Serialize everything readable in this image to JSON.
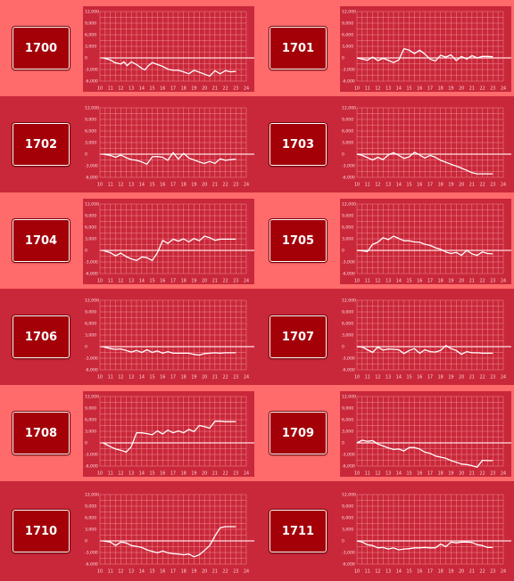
{
  "y_ticks": [
    "12,000",
    "9,000",
    "6,000",
    "3,000",
    "0",
    "-3,000",
    "-6,000"
  ],
  "x_ticks": [
    "10",
    "11",
    "12",
    "13",
    "14",
    "15",
    "16",
    "17",
    "18",
    "19",
    "20",
    "21",
    "22",
    "23",
    "24"
  ],
  "machines": [
    {
      "label": "1700"
    },
    {
      "label": "1701"
    },
    {
      "label": "1702"
    },
    {
      "label": "1703"
    },
    {
      "label": "1704"
    },
    {
      "label": "1705"
    },
    {
      "label": "1706"
    },
    {
      "label": "1707"
    },
    {
      "label": "1708"
    },
    {
      "label": "1709"
    },
    {
      "label": "1710"
    },
    {
      "label": "1711"
    }
  ],
  "chart_data": [
    {
      "type": "line",
      "title": "1700",
      "ylim": [
        -6000,
        12000
      ],
      "xlim": [
        10,
        24
      ],
      "grid": true,
      "series": [
        {
          "x": [
            10.3,
            11,
            11.4,
            12,
            12.3,
            12.6,
            13,
            13.5,
            14,
            14.3,
            14.6,
            15,
            15.5,
            16,
            16.5,
            17,
            17.5,
            18,
            18.5,
            19,
            19.5,
            20,
            20.5,
            21,
            21.5,
            22,
            22.5,
            23
          ],
          "y": [
            0,
            -500,
            -1200,
            -1600,
            -1000,
            -2000,
            -1000,
            -1700,
            -2700,
            -3100,
            -2100,
            -1200,
            -1700,
            -2200,
            -2900,
            -3200,
            -3200,
            -3600,
            -4100,
            -3200,
            -3700,
            -4200,
            -4700,
            -3300,
            -4100,
            -3300,
            -3600,
            -3500
          ]
        }
      ]
    },
    {
      "type": "line",
      "title": "1701",
      "ylim": [
        -6000,
        12000
      ],
      "xlim": [
        10,
        24
      ],
      "grid": true,
      "series": [
        {
          "x": [
            10,
            10.5,
            11,
            11.5,
            12,
            12.5,
            13,
            13.5,
            14,
            14.5,
            15,
            15.5,
            16,
            16.5,
            17,
            17.5,
            18,
            18.5,
            19,
            19.5,
            20,
            20.5,
            21,
            21.5,
            22,
            22.5,
            23
          ],
          "y": [
            0,
            -300,
            -600,
            200,
            -700,
            -100,
            -600,
            -1200,
            -500,
            2400,
            2000,
            1100,
            2000,
            1000,
            -300,
            -800,
            700,
            200,
            800,
            -700,
            400,
            -300,
            600,
            0,
            400,
            400,
            300
          ]
        }
      ]
    },
    {
      "type": "line",
      "title": "1702",
      "ylim": [
        -6000,
        12000
      ],
      "xlim": [
        10,
        24
      ],
      "grid": true,
      "series": [
        {
          "x": [
            10.3,
            11,
            11.5,
            12,
            12.5,
            13,
            13.5,
            14,
            14.5,
            15,
            15.5,
            16,
            16.5,
            17,
            17.5,
            18,
            18.5,
            19,
            19.5,
            20,
            20.5,
            21,
            21.5,
            22,
            22.5,
            23
          ],
          "y": [
            0,
            -300,
            -800,
            -200,
            -900,
            -1400,
            -1600,
            -2000,
            -2600,
            -700,
            -600,
            -800,
            -1600,
            400,
            -1300,
            200,
            -1000,
            -1500,
            -2000,
            -2400,
            -1900,
            -2400,
            -1200,
            -1600,
            -1400,
            -1300
          ]
        }
      ]
    },
    {
      "type": "line",
      "title": "1703",
      "ylim": [
        -6000,
        12000
      ],
      "xlim": [
        10,
        24
      ],
      "grid": true,
      "series": [
        {
          "x": [
            10,
            10.5,
            11,
            11.5,
            12,
            12.5,
            13,
            13.5,
            14,
            14.5,
            15,
            15.5,
            16,
            16.5,
            17,
            17.5,
            18,
            18.5,
            19,
            19.5,
            20,
            20.5,
            21,
            21.5,
            22,
            22.5,
            23
          ],
          "y": [
            0,
            -300,
            -900,
            -1500,
            -800,
            -1400,
            -200,
            400,
            -300,
            -1100,
            -700,
            500,
            -200,
            -1000,
            -300,
            -800,
            -1600,
            -2100,
            -2600,
            -3100,
            -3600,
            -4200,
            -4800,
            -5100,
            -5100,
            -5100,
            -5100
          ]
        }
      ]
    },
    {
      "type": "line",
      "title": "1704",
      "ylim": [
        -6000,
        12000
      ],
      "xlim": [
        10,
        24
      ],
      "grid": true,
      "series": [
        {
          "x": [
            10.3,
            11,
            11.5,
            12,
            12.5,
            13,
            13.5,
            14,
            14.5,
            15,
            15.5,
            16,
            16.5,
            17,
            17.5,
            18,
            18.5,
            19,
            19.5,
            20,
            20.5,
            21,
            21.5,
            22,
            22.5,
            23
          ],
          "y": [
            0,
            -600,
            -1400,
            -700,
            -1600,
            -2200,
            -2600,
            -1700,
            -1900,
            -2600,
            -600,
            2600,
            1800,
            2900,
            2400,
            3000,
            2200,
            3100,
            2500,
            3700,
            3300,
            2600,
            2900,
            2900,
            2900,
            2900
          ]
        }
      ]
    },
    {
      "type": "line",
      "title": "1705",
      "ylim": [
        -6000,
        12000
      ],
      "xlim": [
        10,
        24
      ],
      "grid": true,
      "series": [
        {
          "x": [
            10,
            10.5,
            11,
            11.5,
            12,
            12.5,
            13,
            13.5,
            14,
            14.5,
            15,
            15.5,
            16,
            16.5,
            17,
            17.5,
            18,
            18.5,
            19,
            19.5,
            20,
            20.5,
            21,
            21.5,
            22,
            22.5,
            23
          ],
          "y": [
            0,
            -100,
            -300,
            1600,
            2100,
            3300,
            2800,
            3700,
            3100,
            2500,
            2500,
            2200,
            2100,
            1600,
            1300,
            700,
            300,
            -400,
            -800,
            -500,
            -1300,
            0,
            -900,
            -1300,
            -400,
            -800,
            -900
          ]
        }
      ]
    },
    {
      "type": "line",
      "title": "1706",
      "ylim": [
        -6000,
        12000
      ],
      "xlim": [
        10,
        24
      ],
      "grid": true,
      "series": [
        {
          "x": [
            10.3,
            11,
            11.5,
            12,
            12.5,
            13,
            13.5,
            14,
            14.5,
            15,
            15.5,
            16,
            16.5,
            17,
            17.5,
            18,
            18.5,
            19,
            19.5,
            20,
            20.5,
            21,
            21.5,
            22,
            22.5,
            23
          ],
          "y": [
            0,
            -500,
            -700,
            -600,
            -1000,
            -1400,
            -1000,
            -1500,
            -800,
            -1500,
            -1100,
            -1700,
            -1300,
            -1700,
            -1700,
            -1700,
            -1700,
            -2000,
            -2200,
            -1800,
            -1700,
            -1600,
            -1700,
            -1600,
            -1600,
            -1600
          ]
        }
      ]
    },
    {
      "type": "line",
      "title": "1707",
      "ylim": [
        -6000,
        12000
      ],
      "xlim": [
        10,
        24
      ],
      "grid": true,
      "series": [
        {
          "x": [
            10,
            10.5,
            11,
            11.5,
            12,
            12.5,
            13,
            13.5,
            14,
            14.5,
            15,
            15.5,
            16,
            16.5,
            17,
            17.5,
            18,
            18.5,
            19,
            19.5,
            20,
            20.5,
            21,
            21.5,
            22,
            22.5,
            23
          ],
          "y": [
            0,
            -100,
            -800,
            -1500,
            -100,
            -900,
            -600,
            -700,
            -800,
            -1800,
            -1000,
            -500,
            -1700,
            -800,
            -1300,
            -1400,
            -1000,
            300,
            -500,
            -1000,
            -2000,
            -1300,
            -1600,
            -1600,
            -1700,
            -1700,
            -1700
          ]
        }
      ]
    },
    {
      "type": "line",
      "title": "1708",
      "ylim": [
        -6000,
        12000
      ],
      "xlim": [
        10,
        24
      ],
      "grid": true,
      "series": [
        {
          "x": [
            10.3,
            11,
            11.5,
            12,
            12.5,
            13,
            13.5,
            14,
            14.5,
            15,
            15.5,
            16,
            16.5,
            17,
            17.5,
            18,
            18.5,
            19,
            19.5,
            20,
            20.5,
            21,
            21.5,
            22,
            22.5,
            23
          ],
          "y": [
            0,
            -1000,
            -1600,
            -1900,
            -2400,
            -1000,
            2600,
            2600,
            2400,
            2100,
            3100,
            2300,
            3300,
            2600,
            3100,
            2600,
            3500,
            2900,
            4500,
            4200,
            3800,
            5600,
            5600,
            5500,
            5500,
            5500
          ]
        }
      ]
    },
    {
      "type": "line",
      "title": "1709",
      "ylim": [
        -6000,
        12000
      ],
      "xlim": [
        10,
        24
      ],
      "grid": true,
      "series": [
        {
          "x": [
            10,
            10.5,
            11,
            11.5,
            12,
            12.5,
            13,
            13.5,
            14,
            14.5,
            15,
            15.5,
            16,
            16.5,
            17,
            17.5,
            18,
            18.5,
            19,
            19.5,
            20,
            20.5,
            21,
            21.5,
            22,
            22.5,
            23
          ],
          "y": [
            0,
            700,
            400,
            600,
            -300,
            -800,
            -1300,
            -1700,
            -1600,
            -2100,
            -1200,
            -1200,
            -1600,
            -2400,
            -2700,
            -3400,
            -3700,
            -4000,
            -4600,
            -5000,
            -5500,
            -5600,
            -5900,
            -6300,
            -4500,
            -4600,
            -4600
          ]
        }
      ]
    },
    {
      "type": "line",
      "title": "1710",
      "ylim": [
        -6000,
        12000
      ],
      "xlim": [
        10,
        24
      ],
      "grid": true,
      "series": [
        {
          "x": [
            10.3,
            11,
            11.5,
            12,
            12.5,
            13,
            13.5,
            14,
            14.5,
            15,
            15.5,
            16,
            16.5,
            17,
            17.5,
            18,
            18.5,
            19,
            19.5,
            20,
            20.5,
            21,
            21.5,
            22,
            22.5,
            23
          ],
          "y": [
            0,
            -300,
            -1200,
            -300,
            -500,
            -1200,
            -1400,
            -1700,
            -2300,
            -2700,
            -3100,
            -2600,
            -3100,
            -3300,
            -3400,
            -3600,
            -3400,
            -4100,
            -3600,
            -2500,
            -1200,
            1300,
            3400,
            3700,
            3700,
            3700
          ]
        }
      ]
    },
    {
      "type": "line",
      "title": "1711",
      "ylim": [
        -6000,
        12000
      ],
      "xlim": [
        10,
        24
      ],
      "grid": true,
      "series": [
        {
          "x": [
            10,
            10.5,
            11,
            11.5,
            12,
            12.5,
            13,
            13.5,
            14,
            14.5,
            15,
            15.5,
            16,
            16.5,
            17,
            17.5,
            18,
            18.5,
            19,
            19.5,
            20,
            20.5,
            21,
            21.5,
            22,
            22.5,
            23
          ],
          "y": [
            0,
            -300,
            -1000,
            -1200,
            -1800,
            -1700,
            -2100,
            -1800,
            -2300,
            -2100,
            -2000,
            -1800,
            -1800,
            -1700,
            -1800,
            -1800,
            -800,
            -1500,
            -300,
            -500,
            -300,
            -300,
            -400,
            -1000,
            -1200,
            -1700,
            -1700
          ]
        }
      ]
    }
  ]
}
